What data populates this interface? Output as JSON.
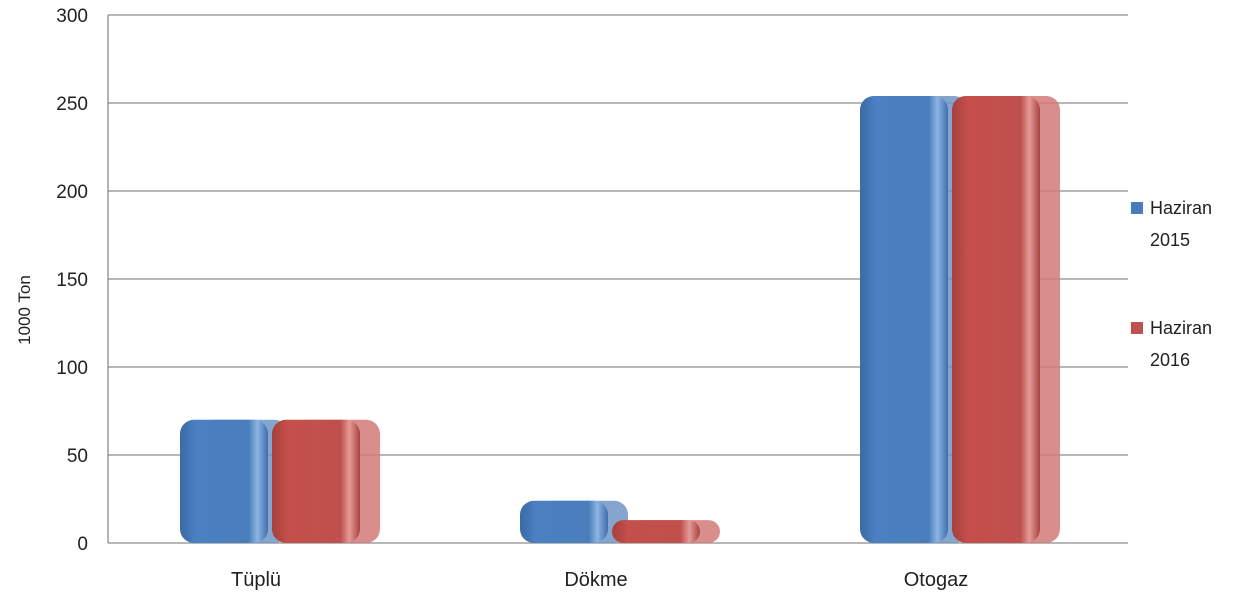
{
  "chart_data": {
    "type": "bar",
    "categories": [
      "Tüplü",
      "Dökme",
      "Otogaz"
    ],
    "series": [
      {
        "name": "Haziran 2015",
        "name_lines": [
          "Haziran",
          "2015"
        ],
        "values": [
          70,
          24,
          254
        ],
        "color": "#4a7ebb"
      },
      {
        "name": "Haziran 2016",
        "name_lines": [
          "Haziran",
          "2016"
        ],
        "values": [
          70,
          13,
          254
        ],
        "color": "#c0504d"
      }
    ],
    "ylabel": "1000 Ton",
    "xlabel": "",
    "title": "",
    "ylim": [
      0,
      300
    ],
    "yticks": [
      0,
      50,
      100,
      150,
      200,
      250,
      300
    ],
    "grid": true,
    "legend_position": "right"
  }
}
